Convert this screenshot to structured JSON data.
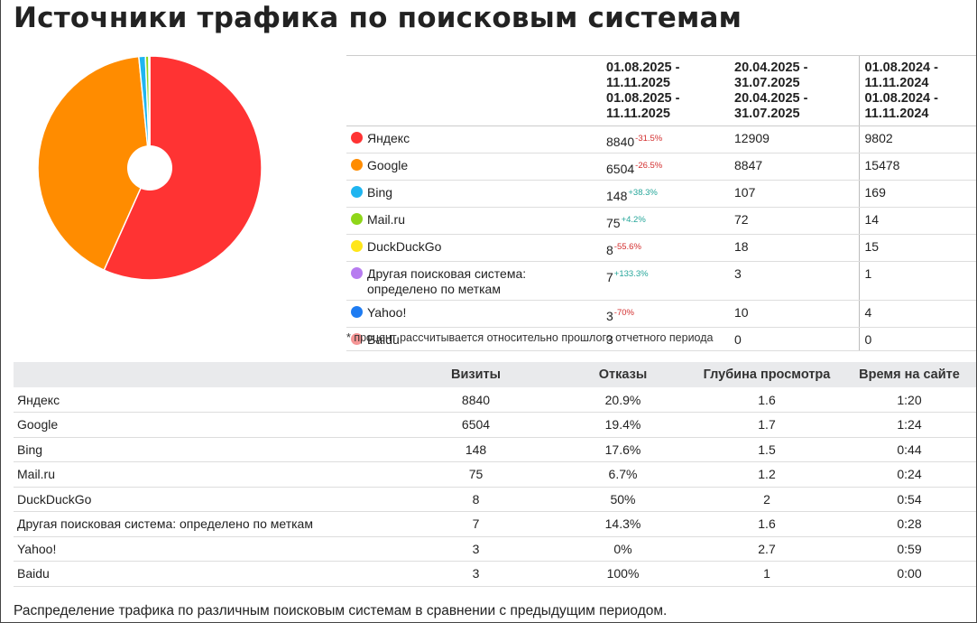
{
  "title": "Источники трафика по поисковым системам",
  "chart_data": {
    "type": "pie",
    "labels": [
      "Яндекс",
      "Google",
      "Bing",
      "Mail.ru",
      "DuckDuckGo",
      "Другая поисковая система: определено по меткам",
      "Yahoo!",
      "Baidu"
    ],
    "values": [
      8840,
      6504,
      148,
      75,
      8,
      7,
      3,
      3
    ],
    "colors": [
      "#ff3333",
      "#ff8c00",
      "#1fb5f0",
      "#8fd619",
      "#ffe619",
      "#b77cf0",
      "#1e7cf2",
      "#f59595"
    ],
    "donut_hole": true
  },
  "comparison": {
    "headers": [
      "",
      "01.08.2025 -\n11.11.2025",
      "20.04.2025 -\n31.07.2025",
      "01.08.2024 -\n11.11.2024"
    ],
    "rows": [
      {
        "source": "Яндекс",
        "color": "#ff3333",
        "current": "8840",
        "change": "-31.5%",
        "trend": "neg",
        "previous": "12909",
        "last_year": "9802"
      },
      {
        "source": "Google",
        "color": "#ff8c00",
        "current": "6504",
        "change": "-26.5%",
        "trend": "neg",
        "previous": "8847",
        "last_year": "15478"
      },
      {
        "source": "Bing",
        "color": "#1fb5f0",
        "current": "148",
        "change": "+38.3%",
        "trend": "pos",
        "previous": "107",
        "last_year": "169"
      },
      {
        "source": "Mail.ru",
        "color": "#8fd619",
        "current": "75",
        "change": "+4.2%",
        "trend": "pos",
        "previous": "72",
        "last_year": "14"
      },
      {
        "source": "DuckDuckGo",
        "color": "#ffe619",
        "current": "8",
        "change": "-55.6%",
        "trend": "neg",
        "previous": "18",
        "last_year": "15"
      },
      {
        "source": "Другая поисковая система: определено по меткам",
        "color": "#b77cf0",
        "current": "7",
        "change": "+133.3%",
        "trend": "pos",
        "previous": "3",
        "last_year": "1"
      },
      {
        "source": "Yahoo!",
        "color": "#1e7cf2",
        "current": "3",
        "change": "-70%",
        "trend": "neg",
        "previous": "10",
        "last_year": "4"
      },
      {
        "source": "Baidu",
        "color": "#f59595",
        "current": "3",
        "change": "",
        "trend": "",
        "previous": "0",
        "last_year": "0"
      }
    ]
  },
  "footnote": "* процент рассчитывается относительно прошлого отчетного периода",
  "metrics": {
    "headers": [
      "",
      "Визиты",
      "Отказы",
      "Глубина просмотра",
      "Время на сайте"
    ],
    "rows": [
      [
        "Яндекс",
        "8840",
        "20.9%",
        "1.6",
        "1:20"
      ],
      [
        "Google",
        "6504",
        "19.4%",
        "1.7",
        "1:24"
      ],
      [
        "Bing",
        "148",
        "17.6%",
        "1.5",
        "0:44"
      ],
      [
        "Mail.ru",
        "75",
        "6.7%",
        "1.2",
        "0:24"
      ],
      [
        "DuckDuckGo",
        "8",
        "50%",
        "2",
        "0:54"
      ],
      [
        "Другая поисковая система: определено по меткам",
        "7",
        "14.3%",
        "1.6",
        "0:28"
      ],
      [
        "Yahoo!",
        "3",
        "0%",
        "2.7",
        "0:59"
      ],
      [
        "Baidu",
        "3",
        "100%",
        "1",
        "0:00"
      ]
    ]
  },
  "caption": "Распределение трафика по различным поисковым системам в сравнении с предыдущим периодом."
}
